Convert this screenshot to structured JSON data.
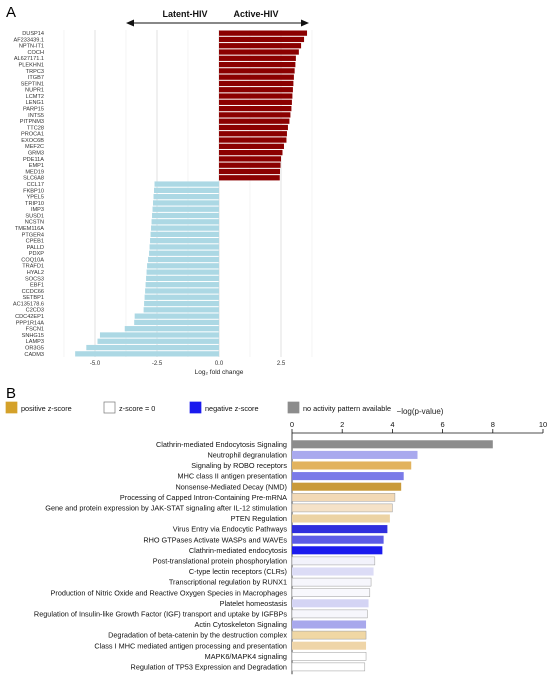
{
  "colors": {
    "active": "#8b0000",
    "latent": "#acd8e4",
    "positive": "#d4a12a",
    "neutral": "#ffffff",
    "negative": "#1a1aee",
    "noactivity": "#8c8c8c"
  },
  "panelA": {
    "panel_label": "A",
    "left_label": "Latent-HIV",
    "right_label": "Active-HIV"
  },
  "panelB": {
    "panel_label": "B",
    "legend": [
      {
        "label": "positive z-score",
        "color": "#d4a12a"
      },
      {
        "label": "z-score = 0",
        "color": "#ffffff"
      },
      {
        "label": "negative z-score",
        "color": "#1a1aee"
      },
      {
        "label": "no activity pattern available",
        "color": "#8c8c8c"
      }
    ]
  },
  "chart_data": [
    {
      "type": "bar",
      "orientation": "horizontal",
      "xlabel": "Log₂ fold change",
      "xlim": [
        -7.2,
        4.2
      ],
      "xticks": [
        "-5.0",
        "-2.5",
        "0.0",
        "2.5"
      ],
      "xtick_values": [
        -5.0,
        -2.5,
        0.0,
        2.5
      ],
      "grid": true,
      "categories": [
        "DUSP14",
        "AF233439.1",
        "NPTN-IT1",
        "COCH",
        "AL627171.1",
        "PLEKHN1",
        "TRPC3",
        "ITGB7",
        "SEPTIN1",
        "NUPR1",
        "LCMT2",
        "LENG1",
        "PARP15",
        "INTS5",
        "PITPNM3",
        "TTC28",
        "PROCA1",
        "EXOC6B",
        "MEF2C",
        "GRM3",
        "PDE11A",
        "EMP1",
        "MED19",
        "SLC6A8",
        "CCL17",
        "FKBP10",
        "YPEL5",
        "TRIP10",
        "IMP3",
        "SUSD1",
        "NCSTN",
        "TMEM116A",
        "PTGER4",
        "CPEB1",
        "PALLD",
        "PDXP",
        "COQ10A",
        "TRAFD1",
        "HYAL2",
        "SOCS3",
        "EBF1",
        "CCDC66",
        "SETBP1",
        "AC135178.6",
        "C2CD3",
        "CDC42EP1",
        "PPP1R14A",
        "FSCN1",
        "SNHG15",
        "LAMP3",
        "OR3G5",
        "CADM3"
      ],
      "values": [
        3.55,
        3.43,
        3.31,
        3.22,
        3.1,
        3.08,
        3.05,
        3.02,
        3.0,
        2.98,
        2.96,
        2.94,
        2.92,
        2.88,
        2.84,
        2.78,
        2.74,
        2.72,
        2.62,
        2.56,
        2.5,
        2.48,
        2.46,
        2.45,
        -2.6,
        -2.62,
        -2.64,
        -2.66,
        -2.68,
        -2.7,
        -2.72,
        -2.74,
        -2.76,
        -2.78,
        -2.8,
        -2.82,
        -2.86,
        -2.9,
        -2.92,
        -2.94,
        -2.96,
        -2.98,
        -3.0,
        -3.02,
        -3.04,
        -3.4,
        -3.42,
        -3.8,
        -4.8,
        -4.9,
        -5.35,
        -5.8
      ]
    },
    {
      "type": "bar",
      "orientation": "horizontal",
      "xlabel": "−log(p-value)",
      "xlim": [
        0,
        10
      ],
      "xticks": [
        "0",
        "2",
        "4",
        "6",
        "8",
        "10"
      ],
      "xtick_values": [
        0,
        2,
        4,
        6,
        8,
        10
      ],
      "axis_position": "top",
      "categories": [
        "Clathrin-mediated Endocytosis Signaling",
        "Neutrophil degranulation",
        "Signaling by ROBO receptors",
        "MHC class II antigen presentation",
        "Nonsense-Mediated Decay (NMD)",
        "Processing of Capped Intron-Containing Pre-mRNA",
        "Gene and protein expression by JAK-STAT signaling after IL-12 stimulation",
        "PTEN Regulation",
        "Virus Entry via Endocytic Pathways",
        "RHO GTPases Activate WASPs and WAVEs",
        "Clathrin-mediated endocytosis",
        "Post-translational protein phosphorylation",
        "C-type lectin receptors (CLRs)",
        "Transcriptional regulation by RUNX1",
        "Production of Nitric Oxide and Reactive Oxygen Species in Macrophages",
        "Platelet homeostasis",
        "Regulation of Insulin-like Growth Factor (IGF) transport and uptake by IGFBPs",
        "Actin Cytoskeleton Signaling",
        "Degradation of beta-catenin by the destruction complex",
        "Class I MHC mediated antigen processing and presentation",
        "MAPK6/MAPK4 signaling",
        "Regulation of TP53 Expression and Degradation"
      ],
      "values": [
        8.0,
        5.0,
        4.75,
        4.45,
        4.35,
        4.1,
        4.0,
        3.9,
        3.8,
        3.65,
        3.6,
        3.3,
        3.25,
        3.15,
        3.1,
        3.05,
        3.0,
        2.95,
        2.95,
        2.95,
        2.95,
        2.9
      ],
      "bar_colors": [
        "#8c8c8c",
        "#a9a9ee",
        "#e2b35e",
        "#7a7ae8",
        "#c99a3a",
        "#f2d9b6",
        "#f5e2c8",
        "#ecd3a4",
        "#2f2fdd",
        "#5c5ce6",
        "#1a1aee",
        "#f2f2fb",
        "#dcdcf6",
        "#f6f6fc",
        "#f8f8fd",
        "#d4d4f4",
        "#f6f6fc",
        "#a8a8ec",
        "#f0d7a4",
        "#efd5a8",
        "#ffffff",
        "#ffffff"
      ]
    }
  ]
}
